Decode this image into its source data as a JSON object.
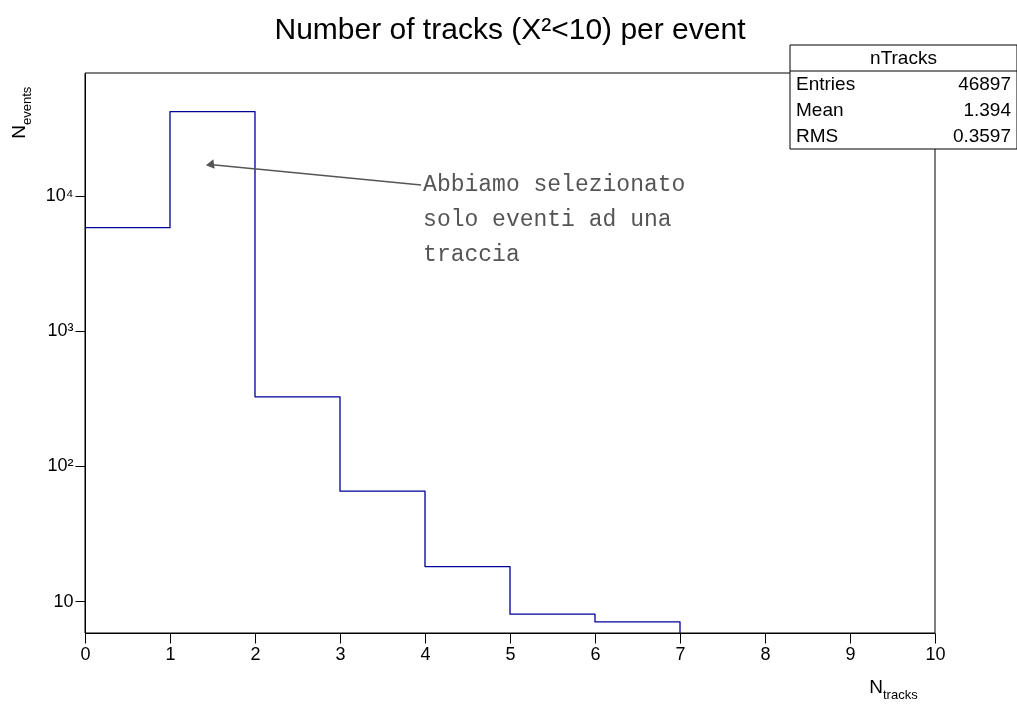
{
  "chart_data": {
    "type": "histogram",
    "title": "Number of tracks (X²<10) per event",
    "xlabel": "N$_{tracks}$",
    "ylabel": "N$_{events}$",
    "bins": [
      0,
      1,
      2,
      3,
      4,
      5,
      6,
      7
    ],
    "values": [
      5800,
      42000,
      325,
      65,
      18,
      8,
      7
    ],
    "color": "#000099",
    "log": "y",
    "xlim": [
      0,
      10
    ],
    "xticks": [
      0,
      1,
      2,
      3,
      4,
      5,
      6,
      7,
      8,
      9,
      10
    ],
    "ylim": [
      5.8,
      81000
    ],
    "yticks": [
      10,
      {
        "value": 100,
        "label": "10²"
      },
      {
        "value": 1000,
        "label": "10³"
      },
      {
        "value": 10000,
        "label": "10⁴"
      }
    ],
    "grid": false,
    "annotations": [
      {
        "text": "Abbiamo selezionato solo eventi ad una traccia",
        "x": 1.47,
        "y": 17000
      },
      "nTracks",
      "Entries",
      "46897",
      "Mean",
      "1.394",
      "RMS",
      "0.3597"
    ]
  }
}
